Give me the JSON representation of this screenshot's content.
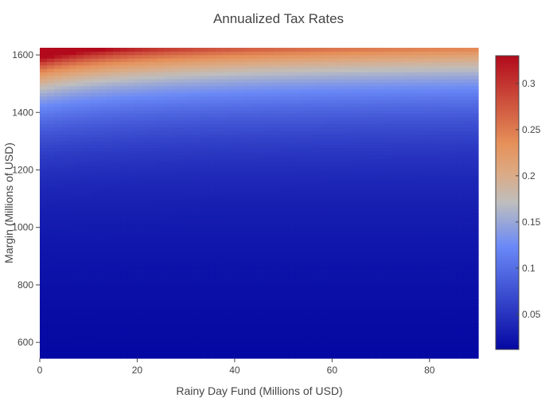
{
  "chart_data": {
    "type": "heatmap",
    "title": "Annualized Tax Rates",
    "xlabel": "Rainy Day Fund (Millions of USD)",
    "ylabel": "Margin (Millions of USD)",
    "xlim": [
      0,
      90
    ],
    "ylim": [
      545,
      1625
    ],
    "x_ticks": [
      0,
      20,
      40,
      60,
      80
    ],
    "y_ticks": [
      600,
      800,
      1000,
      1200,
      1400,
      1600
    ],
    "colorbar": {
      "range": [
        0.012,
        0.33
      ],
      "ticks": [
        0.05,
        0.1,
        0.15,
        0.2,
        0.25,
        0.3
      ],
      "colorscale": [
        [
          0.0,
          "#0508a2"
        ],
        [
          0.35,
          "#6a89f7"
        ],
        [
          0.5,
          "#bebebe"
        ],
        [
          0.6,
          "#dcaa84"
        ],
        [
          0.7,
          "#e6915a"
        ],
        [
          1.0,
          "#b20a1c"
        ]
      ]
    },
    "surface": {
      "description_levels": [
        {
          "margin": 1625,
          "rainy_day_fund": 0,
          "rate": 0.33
        },
        {
          "margin": 1625,
          "rainy_day_fund": 40,
          "rate": 0.21
        },
        {
          "margin": 1625,
          "rainy_day_fund": 90,
          "rate": 0.17
        },
        {
          "margin": 1450,
          "rainy_day_fund": 0,
          "rate": 0.23
        },
        {
          "margin": 1450,
          "rainy_day_fund": 90,
          "rate": 0.11
        },
        {
          "margin": 1300,
          "rainy_day_fund": 0,
          "rate": 0.12
        },
        {
          "margin": 1300,
          "rainy_day_fund": 90,
          "rate": 0.08
        },
        {
          "margin": 1000,
          "rainy_day_fund": 0,
          "rate": 0.05
        },
        {
          "margin": 1000,
          "rainy_day_fund": 90,
          "rate": 0.035
        },
        {
          "margin": 545,
          "rainy_day_fund": 0,
          "rate": 0.015
        },
        {
          "margin": 545,
          "rainy_day_fund": 90,
          "rate": 0.012
        }
      ]
    }
  }
}
